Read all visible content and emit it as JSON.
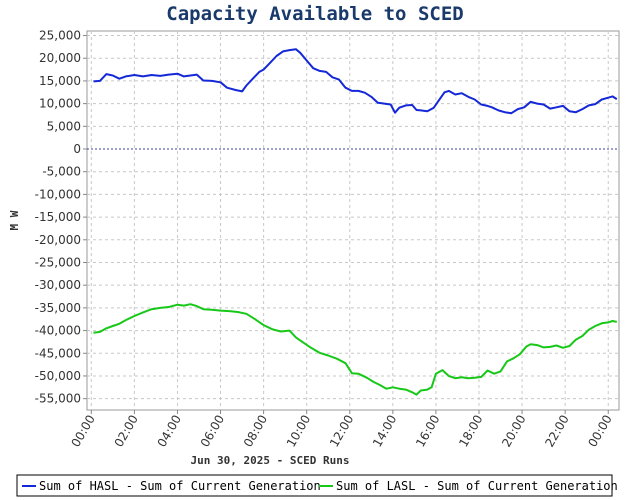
{
  "chart_data": {
    "type": "line",
    "title": "Capacity Available to SCED",
    "xlabel": "Jun 30, 2025 - SCED Runs",
    "ylabel": "M W",
    "ylim": [
      -57500,
      26000
    ],
    "xlim": [
      -0.2,
      24.5
    ],
    "yticks": [
      25000,
      20000,
      15000,
      10000,
      5000,
      0,
      -5000,
      -10000,
      -15000,
      -20000,
      -25000,
      -30000,
      -35000,
      -40000,
      -45000,
      -50000,
      -55000
    ],
    "ytick_labels": [
      "25,000",
      "20,000",
      "15,000",
      "10,000",
      "5,000",
      "0",
      "-5,000",
      "-10,000",
      "-15,000",
      "-20,000",
      "-25,000",
      "-30,000",
      "-35,000",
      "-40,000",
      "-45,000",
      "-50,000",
      "-55,000"
    ],
    "xticks": [
      0,
      2,
      4,
      6,
      8,
      10,
      12,
      14,
      16,
      18,
      20,
      22,
      24
    ],
    "xtick_labels": [
      "00:00",
      "02:00",
      "04:00",
      "06:00",
      "08:00",
      "10:00",
      "12:00",
      "14:00",
      "16:00",
      "18:00",
      "20:00",
      "22:00",
      "00:00"
    ],
    "grid": true,
    "legend_position": "bottom",
    "series": [
      {
        "name": "Sum of HASL - Sum of Current Generation",
        "color": "#1428d8",
        "points": [
          [
            0.1,
            14900
          ],
          [
            0.4,
            15000
          ],
          [
            0.7,
            16500
          ],
          [
            1.0,
            16200
          ],
          [
            1.3,
            15500
          ],
          [
            1.6,
            16000
          ],
          [
            2.0,
            16300
          ],
          [
            2.4,
            16000
          ],
          [
            2.8,
            16300
          ],
          [
            3.2,
            16100
          ],
          [
            3.6,
            16400
          ],
          [
            4.0,
            16600
          ],
          [
            4.3,
            16000
          ],
          [
            4.6,
            16200
          ],
          [
            4.9,
            16400
          ],
          [
            5.2,
            15100
          ],
          [
            5.6,
            15000
          ],
          [
            6.0,
            14700
          ],
          [
            6.3,
            13500
          ],
          [
            6.7,
            13000
          ],
          [
            7.0,
            12700
          ],
          [
            7.2,
            14000
          ],
          [
            7.5,
            15500
          ],
          [
            7.8,
            17000
          ],
          [
            8.0,
            17500
          ],
          [
            8.3,
            19000
          ],
          [
            8.6,
            20500
          ],
          [
            8.9,
            21500
          ],
          [
            9.2,
            21800
          ],
          [
            9.5,
            22000
          ],
          [
            9.7,
            21200
          ],
          [
            10.0,
            19500
          ],
          [
            10.3,
            17800
          ],
          [
            10.6,
            17200
          ],
          [
            10.9,
            17000
          ],
          [
            11.2,
            15800
          ],
          [
            11.5,
            15300
          ],
          [
            11.8,
            13500
          ],
          [
            12.1,
            12800
          ],
          [
            12.4,
            12800
          ],
          [
            12.7,
            12400
          ],
          [
            13.0,
            11500
          ],
          [
            13.3,
            10200
          ],
          [
            13.6,
            10000
          ],
          [
            13.9,
            9800
          ],
          [
            14.1,
            8000
          ],
          [
            14.3,
            9100
          ],
          [
            14.6,
            9600
          ],
          [
            14.9,
            9700
          ],
          [
            15.1,
            8600
          ],
          [
            15.3,
            8500
          ],
          [
            15.6,
            8300
          ],
          [
            15.9,
            9100
          ],
          [
            16.1,
            10500
          ],
          [
            16.4,
            12500
          ],
          [
            16.6,
            12800
          ],
          [
            16.9,
            12000
          ],
          [
            17.2,
            12300
          ],
          [
            17.5,
            11500
          ],
          [
            17.8,
            10900
          ],
          [
            18.1,
            9800
          ],
          [
            18.4,
            9500
          ],
          [
            18.6,
            9200
          ],
          [
            18.9,
            8500
          ],
          [
            19.2,
            8100
          ],
          [
            19.5,
            7900
          ],
          [
            19.8,
            8800
          ],
          [
            20.1,
            9200
          ],
          [
            20.4,
            10400
          ],
          [
            20.7,
            10000
          ],
          [
            21.0,
            9800
          ],
          [
            21.3,
            8900
          ],
          [
            21.6,
            9200
          ],
          [
            21.9,
            9500
          ],
          [
            22.2,
            8300
          ],
          [
            22.5,
            8100
          ],
          [
            22.8,
            8800
          ],
          [
            23.1,
            9600
          ],
          [
            23.4,
            9900
          ],
          [
            23.7,
            10900
          ],
          [
            24.0,
            11300
          ],
          [
            24.2,
            11600
          ],
          [
            24.4,
            11000
          ]
        ]
      },
      {
        "name": "Sum of LASL - Sum of Current Generation",
        "color": "#18c818",
        "points": [
          [
            0.1,
            -40500
          ],
          [
            0.4,
            -40300
          ],
          [
            0.7,
            -39500
          ],
          [
            1.0,
            -39000
          ],
          [
            1.3,
            -38500
          ],
          [
            1.6,
            -37700
          ],
          [
            2.0,
            -36800
          ],
          [
            2.4,
            -36000
          ],
          [
            2.8,
            -35300
          ],
          [
            3.2,
            -35000
          ],
          [
            3.6,
            -34800
          ],
          [
            4.0,
            -34300
          ],
          [
            4.3,
            -34500
          ],
          [
            4.6,
            -34200
          ],
          [
            4.9,
            -34600
          ],
          [
            5.2,
            -35300
          ],
          [
            5.6,
            -35400
          ],
          [
            6.0,
            -35600
          ],
          [
            6.4,
            -35700
          ],
          [
            6.8,
            -35900
          ],
          [
            7.2,
            -36300
          ],
          [
            7.6,
            -37500
          ],
          [
            8.0,
            -38800
          ],
          [
            8.4,
            -39700
          ],
          [
            8.8,
            -40200
          ],
          [
            9.2,
            -40000
          ],
          [
            9.5,
            -41500
          ],
          [
            9.8,
            -42500
          ],
          [
            10.2,
            -43800
          ],
          [
            10.6,
            -44900
          ],
          [
            11.0,
            -45500
          ],
          [
            11.4,
            -46200
          ],
          [
            11.8,
            -47200
          ],
          [
            12.1,
            -49400
          ],
          [
            12.4,
            -49500
          ],
          [
            12.8,
            -50400
          ],
          [
            13.1,
            -51300
          ],
          [
            13.4,
            -52000
          ],
          [
            13.7,
            -52800
          ],
          [
            14.0,
            -52500
          ],
          [
            14.3,
            -52800
          ],
          [
            14.6,
            -53000
          ],
          [
            14.9,
            -53600
          ],
          [
            15.1,
            -54100
          ],
          [
            15.3,
            -53200
          ],
          [
            15.6,
            -53000
          ],
          [
            15.8,
            -52500
          ],
          [
            16.0,
            -49500
          ],
          [
            16.3,
            -48700
          ],
          [
            16.6,
            -50000
          ],
          [
            16.9,
            -50500
          ],
          [
            17.2,
            -50300
          ],
          [
            17.5,
            -50500
          ],
          [
            17.8,
            -50400
          ],
          [
            18.1,
            -50200
          ],
          [
            18.4,
            -48800
          ],
          [
            18.7,
            -49500
          ],
          [
            19.0,
            -49000
          ],
          [
            19.3,
            -46800
          ],
          [
            19.6,
            -46100
          ],
          [
            19.9,
            -45200
          ],
          [
            20.2,
            -43500
          ],
          [
            20.4,
            -43000
          ],
          [
            20.7,
            -43200
          ],
          [
            21.0,
            -43700
          ],
          [
            21.3,
            -43600
          ],
          [
            21.6,
            -43300
          ],
          [
            21.9,
            -43800
          ],
          [
            22.2,
            -43400
          ],
          [
            22.5,
            -42000
          ],
          [
            22.8,
            -41200
          ],
          [
            23.1,
            -39800
          ],
          [
            23.4,
            -39000
          ],
          [
            23.7,
            -38400
          ],
          [
            24.0,
            -38200
          ],
          [
            24.2,
            -37900
          ],
          [
            24.4,
            -38100
          ]
        ]
      }
    ]
  }
}
